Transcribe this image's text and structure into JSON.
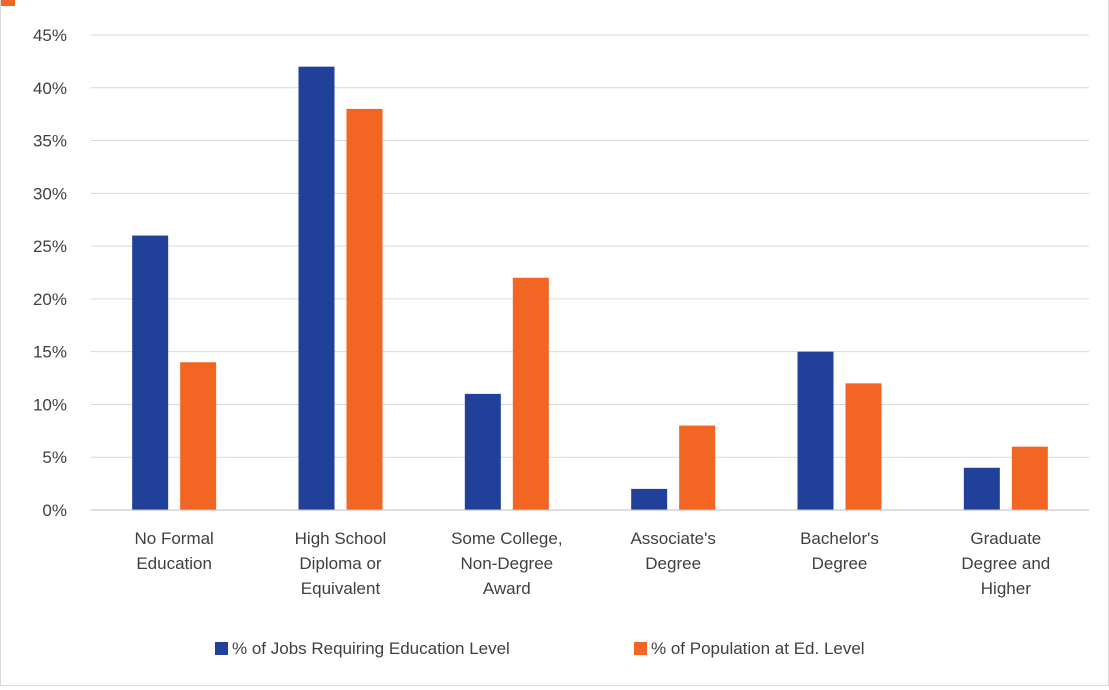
{
  "colors": {
    "series1": "#21409a",
    "series2": "#f26522",
    "grid": "#d9d9d9",
    "axis": "#bfbfbf",
    "text": "#404040"
  },
  "chart_data": {
    "type": "bar",
    "title": "",
    "xlabel": "",
    "ylabel": "",
    "ylim": [
      0,
      45
    ],
    "yticks": [
      0,
      5,
      10,
      15,
      20,
      25,
      30,
      35,
      40,
      45
    ],
    "ytick_labels": [
      "0%",
      "5%",
      "10%",
      "15%",
      "20%",
      "25%",
      "30%",
      "35%",
      "40%",
      "45%"
    ],
    "grid": true,
    "legend_position": "bottom",
    "categories": [
      "No Formal Education",
      "High School Diploma or Equivalent",
      "Some College, Non-Degree Award",
      "Associate's Degree",
      "Bachelor's Degree",
      "Graduate Degree and Higher"
    ],
    "category_label_lines": [
      [
        "No Formal",
        "Education"
      ],
      [
        "High School",
        "Diploma or",
        "Equivalent"
      ],
      [
        "Some College,",
        "Non-Degree",
        "Award"
      ],
      [
        "Associate's",
        "Degree"
      ],
      [
        "Bachelor's",
        "Degree"
      ],
      [
        "Graduate",
        "Degree and",
        "Higher"
      ]
    ],
    "series": [
      {
        "name": "% of Jobs Requiring Education Level",
        "values": [
          26,
          42,
          11,
          2,
          15,
          4
        ]
      },
      {
        "name": "% of Population at Ed. Level",
        "values": [
          14,
          38,
          22,
          8,
          12,
          6
        ]
      }
    ]
  }
}
